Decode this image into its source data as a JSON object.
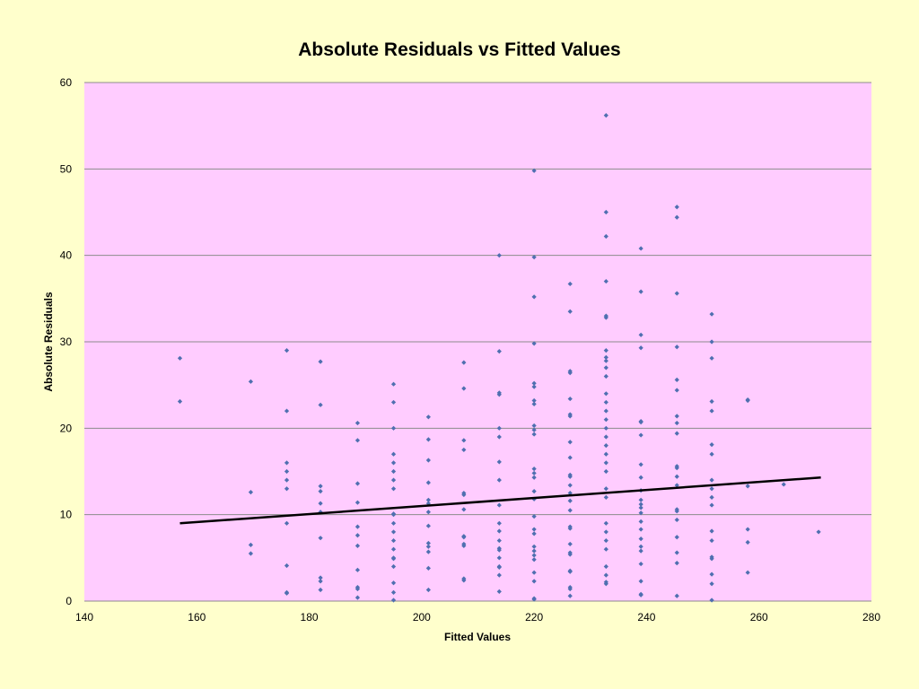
{
  "chart_data": {
    "type": "scatter",
    "title": "Absolute Residuals vs Fitted Values",
    "xlabel": "Fitted Values",
    "ylabel": "Absolute Residuals",
    "xlim": [
      140,
      280
    ],
    "ylim": [
      0,
      60
    ],
    "x_ticks": [
      "140",
      "160",
      "180",
      "200",
      "220",
      "240",
      "260",
      "280"
    ],
    "y_ticks": [
      "0",
      "10",
      "20",
      "30",
      "40",
      "50",
      "60"
    ],
    "grid": "horizontal",
    "legend": "none",
    "colors": {
      "page_background": "#ffffcc",
      "plot_background": "#ffccff",
      "point": "#4f6fb0",
      "trend_line": "#000000",
      "gridline": "#8c8c8c"
    },
    "trend_line": {
      "x": [
        157,
        271
      ],
      "y": [
        9.0,
        14.3
      ]
    },
    "points": [
      [
        157,
        28.1
      ],
      [
        157,
        23.1
      ],
      [
        169.6,
        25.4
      ],
      [
        169.6,
        12.6
      ],
      [
        169.6,
        6.5
      ],
      [
        169.6,
        5.5
      ],
      [
        176,
        29.0
      ],
      [
        176,
        22.0
      ],
      [
        176,
        16.0
      ],
      [
        176,
        15.0
      ],
      [
        176,
        14.0
      ],
      [
        176,
        13.0
      ],
      [
        176,
        9.0
      ],
      [
        176,
        4.1
      ],
      [
        176,
        1.0
      ],
      [
        176,
        0.9
      ],
      [
        182,
        27.7
      ],
      [
        182,
        22.7
      ],
      [
        182,
        13.3
      ],
      [
        182,
        12.7
      ],
      [
        182,
        11.3
      ],
      [
        182,
        10.3
      ],
      [
        182,
        7.3
      ],
      [
        182,
        2.7
      ],
      [
        182,
        2.3
      ],
      [
        182,
        1.3
      ],
      [
        188.6,
        20.6
      ],
      [
        188.6,
        18.6
      ],
      [
        188.6,
        13.6
      ],
      [
        188.6,
        11.4
      ],
      [
        188.6,
        8.6
      ],
      [
        188.6,
        7.6
      ],
      [
        188.6,
        6.4
      ],
      [
        188.6,
        3.6
      ],
      [
        188.6,
        1.6
      ],
      [
        188.6,
        1.4
      ],
      [
        188.6,
        0.4
      ],
      [
        195,
        25.1
      ],
      [
        195,
        23.0
      ],
      [
        195,
        20.0
      ],
      [
        195,
        17.0
      ],
      [
        195,
        16.0
      ],
      [
        195,
        15.0
      ],
      [
        195,
        14.0
      ],
      [
        195,
        13.0
      ],
      [
        195,
        10.1
      ],
      [
        195,
        10.0
      ],
      [
        195,
        9.0
      ],
      [
        195,
        8.0
      ],
      [
        195,
        7.0
      ],
      [
        195,
        6.0
      ],
      [
        195,
        5.0
      ],
      [
        195,
        4.9
      ],
      [
        195,
        4.0
      ],
      [
        195,
        2.1
      ],
      [
        195,
        1.0
      ],
      [
        195,
        0.1
      ],
      [
        201.2,
        21.3
      ],
      [
        201.2,
        18.7
      ],
      [
        201.2,
        16.3
      ],
      [
        201.2,
        13.7
      ],
      [
        201.2,
        11.7
      ],
      [
        201.2,
        11.3
      ],
      [
        201.2,
        10.3
      ],
      [
        201.2,
        8.7
      ],
      [
        201.2,
        6.7
      ],
      [
        201.2,
        6.3
      ],
      [
        201.2,
        5.7
      ],
      [
        201.2,
        3.8
      ],
      [
        201.2,
        1.3
      ],
      [
        207.5,
        27.6
      ],
      [
        207.5,
        24.6
      ],
      [
        207.5,
        18.6
      ],
      [
        207.5,
        17.5
      ],
      [
        207.5,
        12.5
      ],
      [
        207.5,
        12.3
      ],
      [
        207.5,
        10.6
      ],
      [
        207.5,
        7.5
      ],
      [
        207.5,
        7.4
      ],
      [
        207.5,
        6.6
      ],
      [
        207.5,
        6.4
      ],
      [
        207.5,
        2.6
      ],
      [
        207.5,
        2.4
      ],
      [
        213.8,
        40.0
      ],
      [
        213.8,
        28.9
      ],
      [
        213.8,
        24.1
      ],
      [
        213.8,
        23.9
      ],
      [
        213.8,
        20.0
      ],
      [
        213.8,
        19.0
      ],
      [
        213.8,
        16.1
      ],
      [
        213.8,
        14.0
      ],
      [
        213.8,
        11.1
      ],
      [
        213.8,
        9.0
      ],
      [
        213.8,
        8.1
      ],
      [
        213.8,
        7.0
      ],
      [
        213.8,
        6.1
      ],
      [
        213.8,
        5.9
      ],
      [
        213.8,
        5.0
      ],
      [
        213.8,
        4.0
      ],
      [
        213.8,
        3.9
      ],
      [
        213.8,
        3.0
      ],
      [
        213.8,
        1.1
      ],
      [
        220,
        49.8
      ],
      [
        220,
        39.8
      ],
      [
        220,
        35.2
      ],
      [
        220,
        29.8
      ],
      [
        220,
        25.2
      ],
      [
        220,
        24.8
      ],
      [
        220,
        23.2
      ],
      [
        220,
        22.8
      ],
      [
        220,
        20.3
      ],
      [
        220,
        19.8
      ],
      [
        220,
        19.3
      ],
      [
        220,
        15.3
      ],
      [
        220,
        14.8
      ],
      [
        220,
        14.3
      ],
      [
        220,
        12.7
      ],
      [
        220,
        11.8
      ],
      [
        220,
        9.8
      ],
      [
        220,
        8.3
      ],
      [
        220,
        7.8
      ],
      [
        220,
        6.3
      ],
      [
        220,
        5.8
      ],
      [
        220,
        5.3
      ],
      [
        220,
        4.8
      ],
      [
        220,
        3.3
      ],
      [
        220,
        2.3
      ],
      [
        220,
        0.3
      ],
      [
        220,
        0.2
      ],
      [
        226.4,
        36.7
      ],
      [
        226.4,
        33.5
      ],
      [
        226.4,
        26.6
      ],
      [
        226.4,
        26.4
      ],
      [
        226.4,
        23.4
      ],
      [
        226.4,
        21.6
      ],
      [
        226.4,
        21.4
      ],
      [
        226.4,
        18.4
      ],
      [
        226.4,
        16.6
      ],
      [
        226.4,
        14.6
      ],
      [
        226.4,
        14.4
      ],
      [
        226.4,
        13.4
      ],
      [
        226.4,
        12.5
      ],
      [
        226.4,
        11.6
      ],
      [
        226.4,
        10.5
      ],
      [
        226.4,
        8.6
      ],
      [
        226.4,
        8.4
      ],
      [
        226.4,
        6.6
      ],
      [
        226.4,
        5.6
      ],
      [
        226.4,
        5.4
      ],
      [
        226.4,
        3.5
      ],
      [
        226.4,
        3.4
      ],
      [
        226.4,
        1.6
      ],
      [
        226.4,
        1.4
      ],
      [
        226.4,
        0.6
      ],
      [
        232.8,
        56.2
      ],
      [
        232.8,
        45.0
      ],
      [
        232.8,
        42.2
      ],
      [
        232.8,
        37.0
      ],
      [
        232.8,
        33.0
      ],
      [
        232.8,
        32.8
      ],
      [
        232.8,
        29.0
      ],
      [
        232.8,
        28.2
      ],
      [
        232.8,
        27.8
      ],
      [
        232.8,
        27.0
      ],
      [
        232.8,
        26.0
      ],
      [
        232.8,
        24.0
      ],
      [
        232.8,
        23.0
      ],
      [
        232.8,
        22.0
      ],
      [
        232.8,
        21.0
      ],
      [
        232.8,
        20.0
      ],
      [
        232.8,
        19.0
      ],
      [
        232.8,
        18.0
      ],
      [
        232.8,
        17.0
      ],
      [
        232.8,
        16.0
      ],
      [
        232.8,
        15.0
      ],
      [
        232.8,
        13.0
      ],
      [
        232.8,
        12.0
      ],
      [
        232.8,
        9.0
      ],
      [
        232.8,
        8.0
      ],
      [
        232.8,
        7.0
      ],
      [
        232.8,
        6.0
      ],
      [
        232.8,
        4.0
      ],
      [
        232.8,
        3.0
      ],
      [
        232.8,
        2.2
      ],
      [
        232.8,
        2.0
      ],
      [
        239,
        40.8
      ],
      [
        239,
        35.8
      ],
      [
        239,
        30.8
      ],
      [
        239,
        29.3
      ],
      [
        239,
        20.8
      ],
      [
        239,
        20.7
      ],
      [
        239,
        19.2
      ],
      [
        239,
        15.8
      ],
      [
        239,
        14.3
      ],
      [
        239,
        12.8
      ],
      [
        239,
        11.7
      ],
      [
        239,
        11.2
      ],
      [
        239,
        10.8
      ],
      [
        239,
        10.2
      ],
      [
        239,
        9.2
      ],
      [
        239,
        8.3
      ],
      [
        239,
        7.2
      ],
      [
        239,
        6.3
      ],
      [
        239,
        5.8
      ],
      [
        239,
        4.3
      ],
      [
        239,
        2.3
      ],
      [
        239,
        0.8
      ],
      [
        239,
        0.7
      ],
      [
        245.4,
        45.6
      ],
      [
        245.4,
        44.4
      ],
      [
        245.4,
        35.6
      ],
      [
        245.4,
        29.4
      ],
      [
        245.4,
        25.6
      ],
      [
        245.4,
        24.4
      ],
      [
        245.4,
        21.4
      ],
      [
        245.4,
        20.6
      ],
      [
        245.4,
        19.4
      ],
      [
        245.4,
        15.6
      ],
      [
        245.4,
        15.4
      ],
      [
        245.4,
        14.4
      ],
      [
        245.4,
        13.4
      ],
      [
        245.4,
        10.6
      ],
      [
        245.4,
        10.4
      ],
      [
        245.4,
        9.4
      ],
      [
        245.4,
        7.4
      ],
      [
        245.4,
        5.6
      ],
      [
        245.4,
        4.4
      ],
      [
        245.4,
        0.6
      ],
      [
        251.6,
        33.2
      ],
      [
        251.6,
        30.0
      ],
      [
        251.6,
        28.1
      ],
      [
        251.6,
        23.1
      ],
      [
        251.6,
        22.0
      ],
      [
        251.6,
        18.1
      ],
      [
        251.6,
        17.0
      ],
      [
        251.6,
        14.0
      ],
      [
        251.6,
        13.0
      ],
      [
        251.6,
        12.0
      ],
      [
        251.6,
        11.1
      ],
      [
        251.6,
        8.1
      ],
      [
        251.6,
        7.0
      ],
      [
        251.6,
        5.1
      ],
      [
        251.6,
        4.9
      ],
      [
        251.6,
        3.1
      ],
      [
        251.6,
        2.0
      ],
      [
        251.6,
        0.1
      ],
      [
        258,
        23.3
      ],
      [
        258,
        23.2
      ],
      [
        258,
        13.3
      ],
      [
        258,
        8.3
      ],
      [
        258,
        6.8
      ],
      [
        258,
        3.3
      ],
      [
        264.4,
        13.5
      ],
      [
        270.6,
        8.0
      ]
    ]
  }
}
